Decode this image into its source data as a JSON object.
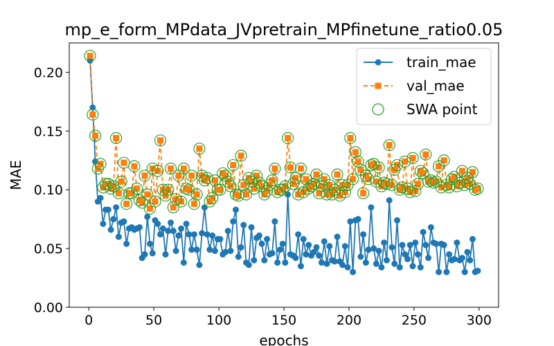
{
  "chart_data": {
    "type": "line",
    "title": "mp_e_form_MPdata_JVpretrain_MPfinetune_ratio0.05",
    "xlabel": "epochs",
    "ylabel": "MAE",
    "xlim": [
      -15,
      315
    ],
    "ylim": [
      0.0,
      0.225
    ],
    "xticks": [
      0,
      50,
      100,
      150,
      200,
      250,
      300
    ],
    "yticks": [
      0.0,
      0.05,
      0.1,
      0.15,
      0.2
    ],
    "ytick_labels": [
      "0.00",
      "0.05",
      "0.10",
      "0.15",
      "0.20"
    ],
    "legend_position": "top-right",
    "colors": {
      "train_mae": "#1f77b4",
      "val_mae": "#ff7f0e",
      "swa_point": "#2ca02c"
    },
    "series": [
      {
        "name": "train_mae",
        "marker": "circle",
        "line": "solid",
        "x": [
          1,
          3,
          5,
          7,
          9,
          11,
          13,
          15,
          17,
          19,
          21,
          23,
          25,
          27,
          29,
          31,
          33,
          35,
          37,
          39,
          41,
          43,
          45,
          47,
          49,
          51,
          53,
          55,
          57,
          59,
          61,
          63,
          65,
          67,
          69,
          71,
          73,
          75,
          77,
          79,
          81,
          83,
          85,
          87,
          89,
          91,
          93,
          95,
          97,
          99,
          101,
          103,
          105,
          107,
          109,
          111,
          113,
          115,
          117,
          119,
          121,
          123,
          125,
          127,
          129,
          131,
          133,
          135,
          137,
          139,
          141,
          143,
          145,
          147,
          149,
          151,
          153,
          155,
          157,
          159,
          161,
          163,
          165,
          167,
          169,
          171,
          173,
          175,
          177,
          179,
          181,
          183,
          185,
          187,
          189,
          191,
          193,
          195,
          197,
          199,
          201,
          203,
          205,
          207,
          209,
          211,
          213,
          215,
          217,
          219,
          221,
          223,
          225,
          227,
          229,
          231,
          233,
          235,
          237,
          239,
          241,
          243,
          245,
          247,
          249,
          251,
          253,
          255,
          257,
          259,
          261,
          263,
          265,
          267,
          269,
          271,
          273,
          275,
          277,
          279,
          281,
          283,
          285,
          287,
          289,
          291,
          293,
          295,
          297,
          299
        ],
        "values": [
          0.21,
          0.17,
          0.124,
          0.09,
          0.093,
          0.071,
          0.083,
          0.083,
          0.066,
          0.075,
          0.085,
          0.06,
          0.072,
          0.073,
          0.054,
          0.067,
          0.068,
          0.066,
          0.067,
          0.068,
          0.042,
          0.045,
          0.077,
          0.054,
          0.046,
          0.074,
          0.071,
          0.062,
          0.067,
          0.045,
          0.065,
          0.072,
          0.065,
          0.048,
          0.061,
          0.067,
          0.038,
          0.071,
          0.062,
          0.049,
          0.062,
          0.049,
          0.036,
          0.063,
          0.085,
          0.062,
          0.049,
          0.061,
          0.048,
          0.058,
          0.058,
          0.045,
          0.047,
          0.065,
          0.048,
          0.073,
          0.083,
          0.043,
          0.051,
          0.07,
          0.038,
          0.036,
          0.068,
          0.04,
          0.059,
          0.061,
          0.054,
          0.04,
          0.058,
          0.045,
          0.046,
          0.073,
          0.038,
          0.049,
          0.054,
          0.038,
          0.096,
          0.045,
          0.044,
          0.042,
          0.062,
          0.035,
          0.058,
          0.045,
          0.053,
          0.044,
          0.047,
          0.051,
          0.044,
          0.038,
          0.056,
          0.037,
          0.052,
          0.04,
          0.039,
          0.06,
          0.039,
          0.036,
          0.052,
          0.034,
          0.073,
          0.03,
          0.074,
          0.075,
          0.043,
          0.062,
          0.038,
          0.049,
          0.085,
          0.05,
          0.037,
          0.048,
          0.034,
          0.055,
          0.04,
          0.091,
          0.051,
          0.037,
          0.074,
          0.034,
          0.053,
          0.045,
          0.041,
          0.053,
          0.035,
          0.055,
          0.045,
          0.034,
          0.064,
          0.053,
          0.042,
          0.068,
          0.055,
          0.054,
          0.03,
          0.054,
          0.053,
          0.03,
          0.045,
          0.04,
          0.041,
          0.055,
          0.04,
          0.042,
          0.03,
          0.047,
          0.04,
          0.058,
          0.03,
          0.031
        ],
        "label": "train_mae"
      },
      {
        "name": "val_mae",
        "marker": "square",
        "line": "dashed",
        "x": [
          1,
          3,
          5,
          7,
          9,
          11,
          13,
          15,
          17,
          19,
          21,
          23,
          25,
          27,
          29,
          31,
          33,
          35,
          37,
          39,
          41,
          43,
          45,
          47,
          49,
          51,
          53,
          55,
          57,
          59,
          61,
          63,
          65,
          67,
          69,
          71,
          73,
          75,
          77,
          79,
          81,
          83,
          85,
          87,
          89,
          91,
          93,
          95,
          97,
          99,
          101,
          103,
          105,
          107,
          109,
          111,
          113,
          115,
          117,
          119,
          121,
          123,
          125,
          127,
          129,
          131,
          133,
          135,
          137,
          139,
          141,
          143,
          145,
          147,
          149,
          151,
          153,
          155,
          157,
          159,
          161,
          163,
          165,
          167,
          169,
          171,
          173,
          175,
          177,
          179,
          181,
          183,
          185,
          187,
          189,
          191,
          193,
          195,
          197,
          199,
          201,
          203,
          205,
          207,
          209,
          211,
          213,
          215,
          217,
          219,
          221,
          223,
          225,
          227,
          229,
          231,
          233,
          235,
          237,
          239,
          241,
          243,
          245,
          247,
          249,
          251,
          253,
          255,
          257,
          259,
          261,
          263,
          265,
          267,
          269,
          271,
          273,
          275,
          277,
          279,
          281,
          283,
          285,
          287,
          289,
          291,
          293,
          295,
          297,
          299
        ],
        "values": [
          0.214,
          0.164,
          0.146,
          0.118,
          0.122,
          0.102,
          0.105,
          0.105,
          0.101,
          0.103,
          0.144,
          0.097,
          0.107,
          0.123,
          0.088,
          0.097,
          0.097,
          0.12,
          0.101,
          0.091,
          0.089,
          0.112,
          0.096,
          0.084,
          0.118,
          0.09,
          0.116,
          0.142,
          0.1,
          0.095,
          0.1,
          0.118,
          0.085,
          0.092,
          0.112,
          0.09,
          0.118,
          0.101,
          0.1,
          0.112,
          0.088,
          0.096,
          0.135,
          0.112,
          0.108,
          0.11,
          0.09,
          0.093,
          0.108,
          0.1,
          0.1,
          0.114,
          0.112,
          0.107,
          0.103,
          0.121,
          0.096,
          0.095,
          0.129,
          0.104,
          0.096,
          0.11,
          0.107,
          0.101,
          0.112,
          0.106,
          0.103,
          0.096,
          0.099,
          0.104,
          0.108,
          0.118,
          0.098,
          0.1,
          0.1,
          0.103,
          0.144,
          0.119,
          0.105,
          0.11,
          0.096,
          0.118,
          0.098,
          0.109,
          0.101,
          0.103,
          0.105,
          0.113,
          0.097,
          0.103,
          0.109,
          0.096,
          0.104,
          0.096,
          0.1,
          0.113,
          0.095,
          0.104,
          0.098,
          0.104,
          0.144,
          0.109,
          0.132,
          0.124,
          0.117,
          0.097,
          0.112,
          0.109,
          0.121,
          0.122,
          0.107,
          0.119,
          0.103,
          0.106,
          0.105,
          0.138,
          0.104,
          0.117,
          0.121,
          0.1,
          0.102,
          0.124,
          0.101,
          0.098,
          0.127,
          0.099,
          0.105,
          0.116,
          0.114,
          0.13,
          0.107,
          0.108,
          0.106,
          0.107,
          0.12,
          0.102,
          0.125,
          0.104,
          0.102,
          0.109,
          0.111,
          0.103,
          0.106,
          0.116,
          0.104,
          0.11,
          0.105,
          0.115,
          0.1,
          0.101
        ],
        "label": "val_mae"
      }
    ],
    "swa_points": {
      "name": "SWA point",
      "marker": "open-circle",
      "note": "drawn at every val_mae point"
    },
    "legend": [
      {
        "label": "train_mae",
        "style": "line-circle",
        "color_key": "train_mae"
      },
      {
        "label": "val_mae",
        "style": "dashed-square",
        "color_key": "val_mae"
      },
      {
        "label": "SWA point",
        "style": "open-circle",
        "color_key": "swa_point"
      }
    ]
  }
}
